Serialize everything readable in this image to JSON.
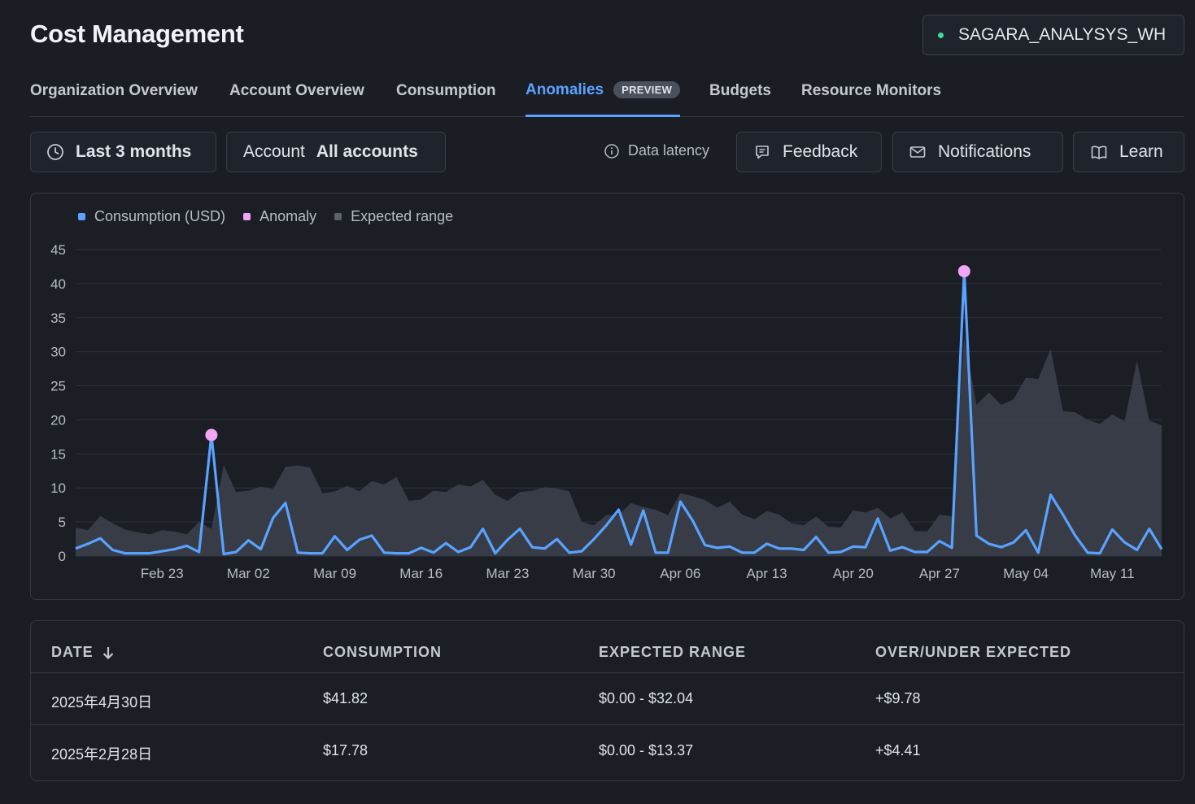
{
  "header": {
    "title": "Cost Management",
    "warehouse": "SAGARA_ANALYSYS_WH"
  },
  "tabs": [
    {
      "label": "Organization Overview"
    },
    {
      "label": "Account Overview"
    },
    {
      "label": "Consumption"
    },
    {
      "label": "Anomalies",
      "badge": "PREVIEW",
      "active": true
    },
    {
      "label": "Budgets"
    },
    {
      "label": "Resource Monitors"
    }
  ],
  "toolbar": {
    "time_range": "Last 3 months",
    "account_label": "Account",
    "account_value": "All accounts",
    "data_latency": "Data latency",
    "feedback": "Feedback",
    "notifications": "Notifications",
    "learn": "Learn"
  },
  "colors": {
    "consumption": "#5aa2ff",
    "anomaly": "#f0a6f5",
    "expected": "#3c424e"
  },
  "chart_data": {
    "type": "line",
    "legend": [
      {
        "name": "Consumption (USD)",
        "color": "#5aa2ff"
      },
      {
        "name": "Anomaly",
        "color": "#f0a6f5"
      },
      {
        "name": "Expected range",
        "color": "#5a606c"
      }
    ],
    "ylim": [
      0,
      45
    ],
    "yticks": [
      0,
      5,
      10,
      15,
      20,
      25,
      30,
      35,
      40,
      45
    ],
    "x_ticks": [
      {
        "label": "Feb 23",
        "day": 7
      },
      {
        "label": "Mar 02",
        "day": 14
      },
      {
        "label": "Mar 09",
        "day": 21
      },
      {
        "label": "Mar 16",
        "day": 28
      },
      {
        "label": "Mar 23",
        "day": 35
      },
      {
        "label": "Mar 30",
        "day": 42
      },
      {
        "label": "Apr 06",
        "day": 49
      },
      {
        "label": "Apr 13",
        "day": 56
      },
      {
        "label": "Apr 20",
        "day": 63
      },
      {
        "label": "Apr 27",
        "day": 70
      },
      {
        "label": "May 04",
        "day": 77
      },
      {
        "label": "May 11",
        "day": 84
      }
    ],
    "consumption": [
      1.1,
      1.8,
      2.6,
      0.9,
      0.4,
      0.4,
      0.4,
      0.7,
      1.0,
      1.5,
      0.6,
      17.8,
      0.3,
      0.6,
      2.3,
      1.0,
      5.6,
      7.8,
      0.5,
      0.4,
      0.4,
      2.9,
      0.9,
      2.4,
      3.0,
      0.5,
      0.4,
      0.4,
      1.2,
      0.5,
      1.9,
      0.6,
      1.3,
      4.0,
      0.4,
      2.4,
      4.0,
      1.3,
      1.1,
      2.5,
      0.5,
      0.7,
      2.5,
      4.5,
      6.8,
      1.7,
      6.7,
      0.5,
      0.5,
      8.0,
      5.2,
      1.6,
      1.2,
      1.4,
      0.5,
      0.5,
      1.8,
      1.1,
      1.1,
      0.9,
      2.8,
      0.5,
      0.6,
      1.4,
      1.3,
      5.5,
      0.8,
      1.3,
      0.6,
      0.6,
      2.2,
      1.2,
      41.8,
      3.0,
      1.8,
      1.3,
      2.0,
      3.8,
      0.5,
      9.0,
      6.1,
      3.0,
      0.5,
      0.4,
      3.9,
      2.0,
      0.9,
      4.0,
      1.0
    ],
    "expected_upper": [
      4.2,
      3.8,
      5.9,
      4.8,
      3.9,
      3.5,
      3.2,
      3.8,
      3.6,
      3.2,
      5.0,
      4.0,
      13.37,
      9.4,
      9.6,
      10.2,
      9.8,
      13.1,
      13.3,
      13.0,
      9.2,
      9.5,
      10.3,
      9.5,
      11.0,
      10.5,
      11.6,
      8.1,
      8.3,
      9.6,
      9.4,
      10.5,
      10.2,
      11.2,
      9.0,
      8.1,
      9.4,
      9.6,
      10.1,
      9.9,
      9.5,
      5.0,
      4.5,
      6.0,
      6.1,
      7.8,
      7.2,
      6.8,
      6.0,
      9.2,
      8.8,
      8.2,
      7.1,
      8.0,
      6.1,
      5.4,
      6.6,
      6.1,
      4.8,
      4.5,
      5.8,
      4.3,
      4.2,
      6.7,
      6.4,
      7.1,
      5.5,
      6.4,
      3.7,
      3.6,
      6.1,
      5.8,
      32.04,
      22.2,
      24.0,
      22.2,
      23.0,
      26.2,
      26.0,
      30.4,
      21.3,
      21.1,
      20.0,
      19.4,
      20.8,
      19.8,
      28.7,
      19.9,
      19.2
    ],
    "anomalies": [
      {
        "index": 11,
        "value": 17.78
      },
      {
        "index": 72,
        "value": 41.82
      }
    ]
  },
  "table": {
    "columns": [
      "DATE",
      "CONSUMPTION",
      "EXPECTED RANGE",
      "OVER/UNDER EXPECTED"
    ],
    "rows": [
      [
        "2025年4月30日",
        "$41.82",
        "$0.00 - $32.04",
        "+$9.78"
      ],
      [
        "2025年2月28日",
        "$17.78",
        "$0.00 - $13.37",
        "+$4.41"
      ]
    ]
  }
}
